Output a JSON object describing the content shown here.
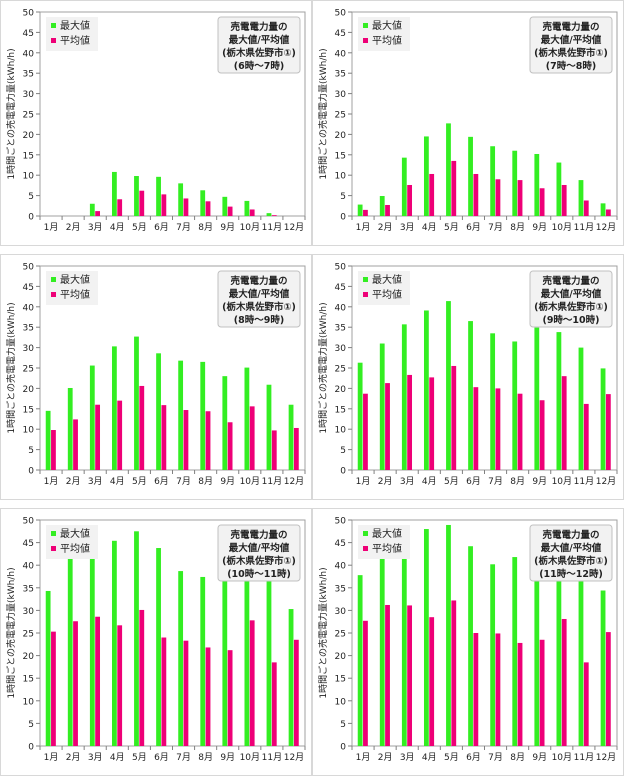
{
  "chart_data": [
    {
      "type": "bar",
      "title_lines": [
        "売電電力量の",
        "最大値/平均値",
        "(栃木県佐野市①)",
        "(6時～7時)"
      ],
      "ylabel": "1時間ごとの売電電力量(kWh/h)",
      "categories": [
        "1月",
        "2月",
        "3月",
        "4月",
        "5月",
        "6月",
        "7月",
        "8月",
        "9月",
        "10月",
        "11月",
        "12月"
      ],
      "ylim": [
        0,
        50
      ],
      "yticks": [
        0,
        5,
        10,
        15,
        20,
        25,
        30,
        35,
        40,
        45,
        50
      ],
      "grid": false,
      "legend": "top-left",
      "series": [
        {
          "name": "最大値",
          "color": "#33ee22",
          "values": [
            0,
            0,
            3.0,
            10.8,
            9.8,
            9.6,
            8.0,
            6.3,
            4.7,
            3.7,
            0.7,
            0
          ]
        },
        {
          "name": "平均値",
          "color": "#ee0077",
          "values": [
            0,
            0,
            1.2,
            4.1,
            6.2,
            5.3,
            4.3,
            3.6,
            2.3,
            1.6,
            0.2,
            0
          ]
        }
      ]
    },
    {
      "type": "bar",
      "title_lines": [
        "売電電力量の",
        "最大値/平均値",
        "(栃木県佐野市①)",
        "(7時～8時)"
      ],
      "ylabel": "1時間ごとの売電電力量(kWh/h)",
      "categories": [
        "1月",
        "2月",
        "3月",
        "4月",
        "5月",
        "6月",
        "7月",
        "8月",
        "9月",
        "10月",
        "11月",
        "12月"
      ],
      "ylim": [
        0,
        50
      ],
      "yticks": [
        0,
        5,
        10,
        15,
        20,
        25,
        30,
        35,
        40,
        45,
        50
      ],
      "grid": false,
      "legend": "top-left",
      "series": [
        {
          "name": "最大値",
          "color": "#33ee22",
          "values": [
            2.8,
            4.9,
            14.3,
            19.5,
            22.7,
            19.4,
            17.1,
            16.0,
            15.2,
            13.1,
            8.8,
            3.1
          ]
        },
        {
          "name": "平均値",
          "color": "#ee0077",
          "values": [
            1.5,
            2.7,
            7.6,
            10.3,
            13.5,
            10.3,
            9.0,
            8.8,
            6.8,
            7.6,
            3.8,
            1.6
          ]
        }
      ]
    },
    {
      "type": "bar",
      "title_lines": [
        "売電電力量の",
        "最大値/平均値",
        "(栃木県佐野市①)",
        "(8時～9時)"
      ],
      "ylabel": "1時間ごとの売電電力量(kWh/h)",
      "categories": [
        "1月",
        "2月",
        "3月",
        "4月",
        "5月",
        "6月",
        "7月",
        "8月",
        "9月",
        "10月",
        "11月",
        "12月"
      ],
      "ylim": [
        0,
        50
      ],
      "yticks": [
        0,
        5,
        10,
        15,
        20,
        25,
        30,
        35,
        40,
        45,
        50
      ],
      "grid": false,
      "legend": "top-left",
      "series": [
        {
          "name": "最大値",
          "color": "#33ee22",
          "values": [
            14.5,
            20.1,
            25.6,
            30.3,
            32.7,
            28.6,
            26.8,
            26.5,
            23.0,
            25.1,
            20.9,
            16.0
          ]
        },
        {
          "name": "平均値",
          "color": "#ee0077",
          "values": [
            9.8,
            12.4,
            16.0,
            17.0,
            20.6,
            15.9,
            14.7,
            14.4,
            11.7,
            15.6,
            9.7,
            10.3
          ]
        }
      ]
    },
    {
      "type": "bar",
      "title_lines": [
        "売電電力量の",
        "最大値/平均値",
        "(栃木県佐野市①)",
        "(9時～10時)"
      ],
      "ylabel": "1時間ごとの売電電力量(kWh/h)",
      "categories": [
        "1月",
        "2月",
        "3月",
        "4月",
        "5月",
        "6月",
        "7月",
        "8月",
        "9月",
        "10月",
        "11月",
        "12月"
      ],
      "ylim": [
        0,
        50
      ],
      "yticks": [
        0,
        5,
        10,
        15,
        20,
        25,
        30,
        35,
        40,
        45,
        50
      ],
      "grid": false,
      "legend": "top-left",
      "series": [
        {
          "name": "最大値",
          "color": "#33ee22",
          "values": [
            26.3,
            31.0,
            35.7,
            39.1,
            41.4,
            36.5,
            33.5,
            31.5,
            34.9,
            33.8,
            30.0,
            24.9
          ]
        },
        {
          "name": "平均値",
          "color": "#ee0077",
          "values": [
            18.7,
            21.3,
            23.3,
            22.7,
            25.5,
            20.3,
            20.0,
            18.7,
            17.1,
            23.0,
            16.2,
            18.6
          ]
        }
      ]
    },
    {
      "type": "bar",
      "title_lines": [
        "売電電力量の",
        "最大値/平均値",
        "(栃木県佐野市①)",
        "(10時～11時)"
      ],
      "ylabel": "1時間ごとの売電電力量(kWh/h)",
      "categories": [
        "1月",
        "2月",
        "3月",
        "4月",
        "5月",
        "6月",
        "7月",
        "8月",
        "9月",
        "10月",
        "11月",
        "12月"
      ],
      "ylim": [
        0,
        50
      ],
      "yticks": [
        0,
        5,
        10,
        15,
        20,
        25,
        30,
        35,
        40,
        45,
        50
      ],
      "grid": false,
      "legend": "top-left",
      "series": [
        {
          "name": "最大値",
          "color": "#33ee22",
          "values": [
            34.3,
            42.5,
            43.2,
            45.4,
            47.5,
            43.8,
            38.7,
            37.4,
            40.2,
            39.6,
            36.8,
            30.3
          ]
        },
        {
          "name": "平均値",
          "color": "#ee0077",
          "values": [
            25.3,
            27.6,
            28.6,
            26.7,
            30.1,
            24.0,
            23.3,
            21.8,
            21.2,
            27.8,
            18.5,
            23.5
          ]
        }
      ]
    },
    {
      "type": "bar",
      "title_lines": [
        "売電電力量の",
        "最大値/平均値",
        "(栃木県佐野市①)",
        "(11時～12時)"
      ],
      "ylabel": "1時間ごとの売電電力量(kWh/h)",
      "categories": [
        "1月",
        "2月",
        "3月",
        "4月",
        "5月",
        "6月",
        "7月",
        "8月",
        "9月",
        "10月",
        "11月",
        "12月"
      ],
      "ylim": [
        0,
        50
      ],
      "yticks": [
        0,
        5,
        10,
        15,
        20,
        25,
        30,
        35,
        40,
        45,
        50
      ],
      "grid": false,
      "legend": "top-left",
      "series": [
        {
          "name": "最大値",
          "color": "#33ee22",
          "values": [
            37.8,
            43.9,
            47.1,
            48.0,
            48.9,
            44.2,
            40.2,
            41.8,
            41.3,
            41.5,
            40.0,
            34.4
          ]
        },
        {
          "name": "平均値",
          "color": "#ee0077",
          "values": [
            27.7,
            31.2,
            31.1,
            28.5,
            32.2,
            25.0,
            24.9,
            22.8,
            23.5,
            28.1,
            18.5,
            25.2
          ]
        }
      ]
    }
  ]
}
